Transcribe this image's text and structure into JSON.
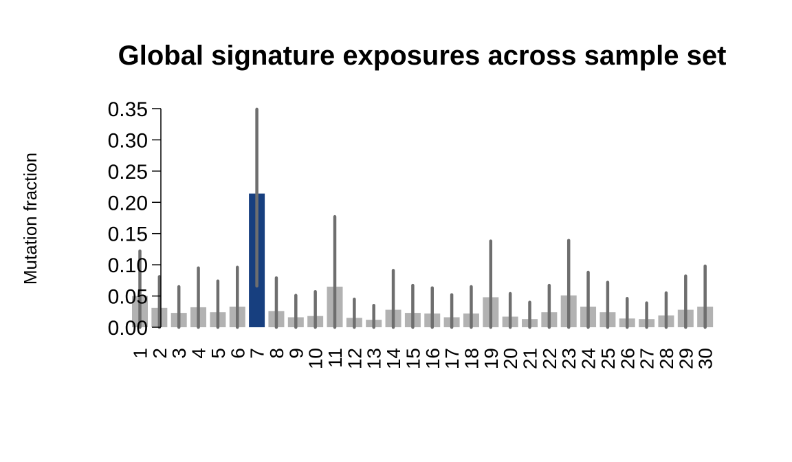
{
  "chart_data": {
    "type": "bar",
    "title": "Global signature exposures across sample set",
    "xlabel": "",
    "ylabel": "Mutation fraction",
    "ylim": [
      0,
      0.35
    ],
    "yticks": [
      "0.00",
      "0.05",
      "0.10",
      "0.15",
      "0.20",
      "0.25",
      "0.30",
      "0.35"
    ],
    "categories": [
      "1",
      "2",
      "3",
      "4",
      "5",
      "6",
      "7",
      "8",
      "9",
      "10",
      "11",
      "12",
      "13",
      "14",
      "15",
      "16",
      "17",
      "18",
      "19",
      "20",
      "21",
      "22",
      "23",
      "24",
      "25",
      "26",
      "27",
      "28",
      "29",
      "30"
    ],
    "values": [
      0.05,
      0.031,
      0.023,
      0.032,
      0.024,
      0.033,
      0.214,
      0.026,
      0.016,
      0.018,
      0.065,
      0.015,
      0.012,
      0.028,
      0.023,
      0.022,
      0.016,
      0.022,
      0.048,
      0.017,
      0.013,
      0.024,
      0.051,
      0.033,
      0.024,
      0.014,
      0.013,
      0.019,
      0.028,
      0.033
    ],
    "error_lower": [
      0,
      0,
      0,
      0,
      0,
      0,
      0.066,
      0,
      0,
      0,
      0,
      0,
      0,
      0,
      0,
      0,
      0,
      0,
      0,
      0,
      0,
      0,
      0,
      0,
      0,
      0,
      0,
      0,
      0,
      0
    ],
    "error_upper": [
      0.122,
      0.081,
      0.065,
      0.095,
      0.074,
      0.096,
      0.349,
      0.079,
      0.051,
      0.057,
      0.177,
      0.045,
      0.035,
      0.091,
      0.067,
      0.063,
      0.052,
      0.065,
      0.138,
      0.054,
      0.04,
      0.067,
      0.139,
      0.088,
      0.072,
      0.046,
      0.039,
      0.055,
      0.082,
      0.098
    ],
    "highlight_index": 6,
    "colors": {
      "bar": "#b2b2b2",
      "highlight": "#173f7f",
      "error_bar": "#6e6e6e",
      "axis": "#000000"
    },
    "grid": false,
    "legend": "none"
  }
}
